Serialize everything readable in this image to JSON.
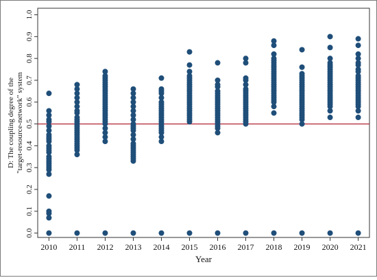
{
  "chart_data": {
    "type": "scatter",
    "title": "",
    "xlabel": "Year",
    "ylabel_lines": [
      "D: The coupling degree of the",
      "\"target-resource-network\" system"
    ],
    "x_ticks": [
      "2010",
      "2011",
      "2012",
      "2013",
      "2014",
      "2015",
      "2016",
      "2017",
      "2018",
      "2019",
      "2020",
      "2021"
    ],
    "y_ticks": [
      "0.0",
      "0.1",
      "0.2",
      "0.3",
      "0.4",
      "0.5",
      "0.6",
      "0.7",
      "0.8",
      "0.9",
      "1.0"
    ],
    "xlim": [
      2009.6,
      2021.4
    ],
    "ylim": [
      -0.02,
      1.03
    ],
    "reference_line": {
      "y": 0.5,
      "color": "#b22234"
    },
    "marker_color": "#1f4e79",
    "grid": false,
    "series": [
      {
        "x": 2010,
        "values": [
          0.0,
          0.07,
          0.09,
          0.1,
          0.17,
          0.27,
          0.29,
          0.3,
          0.31,
          0.32,
          0.33,
          0.34,
          0.35,
          0.37,
          0.38,
          0.39,
          0.4,
          0.42,
          0.43,
          0.44,
          0.45,
          0.47,
          0.49,
          0.51,
          0.52,
          0.54,
          0.56,
          0.64
        ]
      },
      {
        "x": 2011,
        "values": [
          0.0,
          0.36,
          0.38,
          0.39,
          0.4,
          0.41,
          0.42,
          0.43,
          0.44,
          0.45,
          0.46,
          0.47,
          0.48,
          0.49,
          0.5,
          0.51,
          0.52,
          0.53,
          0.55,
          0.56,
          0.58,
          0.6,
          0.62,
          0.64,
          0.66,
          0.68
        ]
      },
      {
        "x": 2012,
        "values": [
          0.0,
          0.42,
          0.44,
          0.46,
          0.48,
          0.5,
          0.51,
          0.52,
          0.53,
          0.54,
          0.55,
          0.56,
          0.57,
          0.58,
          0.59,
          0.6,
          0.61,
          0.62,
          0.63,
          0.64,
          0.65,
          0.66,
          0.67,
          0.68,
          0.69,
          0.7,
          0.71,
          0.72,
          0.74
        ]
      },
      {
        "x": 2013,
        "values": [
          0.0,
          0.33,
          0.34,
          0.35,
          0.36,
          0.37,
          0.38,
          0.39,
          0.4,
          0.41,
          0.43,
          0.45,
          0.47,
          0.48,
          0.49,
          0.5,
          0.52,
          0.54,
          0.56,
          0.58,
          0.6,
          0.62,
          0.64,
          0.66
        ]
      },
      {
        "x": 2014,
        "values": [
          0.0,
          0.42,
          0.44,
          0.46,
          0.47,
          0.48,
          0.49,
          0.5,
          0.51,
          0.52,
          0.53,
          0.54,
          0.55,
          0.56,
          0.57,
          0.58,
          0.59,
          0.6,
          0.62,
          0.64,
          0.65,
          0.66,
          0.71
        ]
      },
      {
        "x": 2015,
        "values": [
          0.0,
          0.51,
          0.52,
          0.53,
          0.54,
          0.55,
          0.56,
          0.57,
          0.58,
          0.59,
          0.6,
          0.61,
          0.62,
          0.63,
          0.64,
          0.65,
          0.66,
          0.67,
          0.68,
          0.69,
          0.7,
          0.71,
          0.72,
          0.74,
          0.77,
          0.83
        ]
      },
      {
        "x": 2016,
        "values": [
          0.0,
          0.46,
          0.48,
          0.49,
          0.5,
          0.51,
          0.52,
          0.53,
          0.54,
          0.55,
          0.56,
          0.57,
          0.58,
          0.59,
          0.6,
          0.61,
          0.62,
          0.63,
          0.64,
          0.65,
          0.67,
          0.68,
          0.7,
          0.78
        ]
      },
      {
        "x": 2017,
        "values": [
          0.0,
          0.5,
          0.51,
          0.52,
          0.53,
          0.54,
          0.55,
          0.56,
          0.57,
          0.58,
          0.59,
          0.6,
          0.61,
          0.62,
          0.63,
          0.64,
          0.65,
          0.66,
          0.68,
          0.7,
          0.71,
          0.78,
          0.8
        ]
      },
      {
        "x": 2018,
        "values": [
          0.0,
          0.55,
          0.58,
          0.6,
          0.61,
          0.62,
          0.63,
          0.64,
          0.65,
          0.66,
          0.67,
          0.68,
          0.69,
          0.7,
          0.71,
          0.72,
          0.73,
          0.74,
          0.75,
          0.76,
          0.77,
          0.78,
          0.79,
          0.8,
          0.82,
          0.86,
          0.88
        ]
      },
      {
        "x": 2019,
        "values": [
          0.0,
          0.5,
          0.52,
          0.53,
          0.54,
          0.55,
          0.56,
          0.57,
          0.58,
          0.59,
          0.6,
          0.61,
          0.62,
          0.63,
          0.64,
          0.65,
          0.66,
          0.67,
          0.68,
          0.69,
          0.7,
          0.71,
          0.72,
          0.73,
          0.76,
          0.84
        ]
      },
      {
        "x": 2020,
        "values": [
          0.0,
          0.53,
          0.56,
          0.58,
          0.59,
          0.6,
          0.61,
          0.62,
          0.63,
          0.64,
          0.65,
          0.66,
          0.67,
          0.68,
          0.69,
          0.7,
          0.71,
          0.72,
          0.73,
          0.74,
          0.75,
          0.76,
          0.77,
          0.78,
          0.8,
          0.85,
          0.9
        ]
      },
      {
        "x": 2021,
        "values": [
          0.0,
          0.53,
          0.56,
          0.58,
          0.59,
          0.6,
          0.61,
          0.62,
          0.63,
          0.64,
          0.65,
          0.66,
          0.67,
          0.68,
          0.69,
          0.7,
          0.71,
          0.72,
          0.74,
          0.75,
          0.77,
          0.78,
          0.8,
          0.82,
          0.86,
          0.89
        ]
      }
    ]
  }
}
